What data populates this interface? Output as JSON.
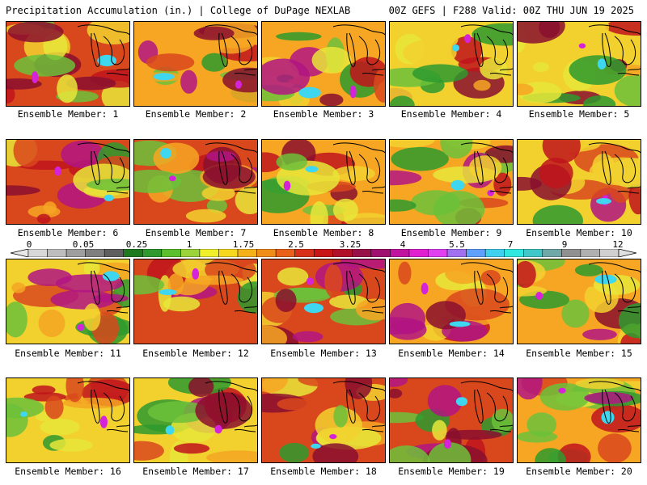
{
  "header": {
    "left": "Precipitation Accumulation (in.) | College of DuPage NEXLAB",
    "right": "00Z GEFS | F288 Valid: 00Z THU JUN 19 2025"
  },
  "panels": [
    {
      "label": "Ensemble Member: 1"
    },
    {
      "label": "Ensemble Member: 2"
    },
    {
      "label": "Ensemble Member: 3"
    },
    {
      "label": "Ensemble Member: 4"
    },
    {
      "label": "Ensemble Member: 5"
    },
    {
      "label": "Ensemble Member: 6"
    },
    {
      "label": "Ensemble Member: 7"
    },
    {
      "label": "Ensemble Member: 8"
    },
    {
      "label": "Ensemble Member: 9"
    },
    {
      "label": "Ensemble Member: 10"
    },
    {
      "label": "Ensemble Member: 11"
    },
    {
      "label": "Ensemble Member: 12"
    },
    {
      "label": "Ensemble Member: 13"
    },
    {
      "label": "Ensemble Member: 14"
    },
    {
      "label": "Ensemble Member: 15"
    },
    {
      "label": "Ensemble Member: 16"
    },
    {
      "label": "Ensemble Member: 17"
    },
    {
      "label": "Ensemble Member: 18"
    },
    {
      "label": "Ensemble Member: 19"
    },
    {
      "label": "Ensemble Member: 20"
    }
  ],
  "legend": {
    "levels": [
      "0",
      "0.05",
      "0.25",
      "1",
      "1.75",
      "2.5",
      "3.25",
      "4",
      "5.5",
      "7",
      "9",
      "12"
    ],
    "colors": [
      "#d8d8d8",
      "#bdbdbd",
      "#9e9e9e",
      "#7f7f7f",
      "#5f5f5f",
      "#1f7a1f",
      "#2e9a2e",
      "#5cbf2e",
      "#9ad43a",
      "#f0f02a",
      "#f7d820",
      "#f5b218",
      "#f08c18",
      "#e8601a",
      "#d83018",
      "#c81414",
      "#b0102a",
      "#981048",
      "#a0106e",
      "#c014a0",
      "#e020d0",
      "#e040f0",
      "#a070f0",
      "#60a0ff",
      "#40d0f0",
      "#30e8e0",
      "#40c8c8",
      "#70a8a8",
      "#909090",
      "#b0b0b0",
      "#d0d0d0"
    ]
  }
}
